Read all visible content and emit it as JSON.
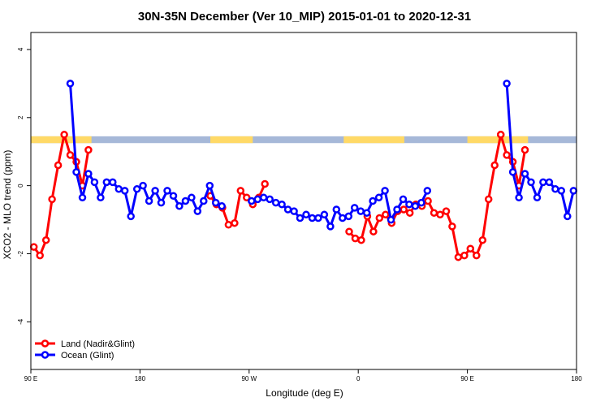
{
  "chart_data": {
    "type": "line",
    "title": "30N-35N December (Ver 10_MIP)   2015-01-01 to 2020-12-31",
    "xlabel": "Longitude (deg E)",
    "ylabel": "XCO2 - MLO trend (ppm)",
    "xlim": [
      90,
      540
    ],
    "ylim": [
      -5.4,
      4.5
    ],
    "x_ticks": [
      {
        "value": 90,
        "label": "90 E"
      },
      {
        "value": 180,
        "label": "180"
      },
      {
        "value": 270,
        "label": "90 W"
      },
      {
        "value": 360,
        "label": "0"
      },
      {
        "value": 450,
        "label": "90 E"
      },
      {
        "value": 540,
        "label": "180"
      }
    ],
    "y_ticks": [
      {
        "value": -4,
        "label": "-4"
      },
      {
        "value": -2,
        "label": "-2"
      },
      {
        "value": 0,
        "label": "0"
      },
      {
        "value": 2,
        "label": "2"
      },
      {
        "value": 4,
        "label": "4"
      }
    ],
    "land_mask_band": {
      "y_range": [
        1.25,
        1.45
      ],
      "land_color": "#FFD966",
      "ocean_color": "#A6B8D8",
      "land_segments": [
        [
          90,
          140
        ],
        [
          238,
          273
        ],
        [
          348,
          398
        ],
        [
          450,
          500
        ]
      ]
    },
    "series": [
      {
        "name": "Land (Nadir&Glint)",
        "color": "#FF0000",
        "segments": [
          {
            "x": [
              92.5,
              97.5,
              102.5,
              107.5,
              112.5,
              117.5,
              122.5,
              127.5,
              132.5,
              137.5
            ],
            "y": [
              -1.8,
              -2.05,
              -1.6,
              -0.4,
              0.6,
              1.5,
              0.9,
              0.7,
              0.0,
              1.05
            ]
          },
          {
            "x": [
              238,
              243,
              248,
              253,
              258,
              263,
              268,
              273,
              278,
              283
            ],
            "y": [
              -0.3,
              -0.55,
              -0.65,
              -1.15,
              -1.1,
              -0.15,
              -0.35,
              -0.55,
              -0.35,
              0.05
            ]
          },
          {
            "x": [
              352.5,
              357.5,
              362.5,
              367.5,
              372.5,
              377.5,
              382.5,
              387.5,
              392.5,
              397.5,
              402.5,
              407.5,
              412.5,
              417.5,
              422.5,
              427.5,
              432.5,
              437.5,
              442.5,
              447.5,
              452.5,
              457.5,
              462.5,
              467.5,
              472.5,
              477.5
            ],
            "y": [
              -1.35,
              -1.55,
              -1.6,
              -0.9,
              -1.35,
              -0.95,
              -0.85,
              -1.1,
              -0.75,
              -0.7,
              -0.8,
              -0.55,
              -0.6,
              -0.45,
              -0.8,
              -0.85,
              -0.75,
              -1.2,
              -2.1,
              -2.05,
              -1.85,
              -2.05,
              -1.6,
              -0.4,
              0.6,
              1.5
            ]
          },
          {
            "x": [
              477.5,
              482.5,
              487.5,
              492.5,
              497.5
            ],
            "y": [
              1.5,
              0.9,
              0.7,
              0.0,
              1.05
            ]
          }
        ]
      },
      {
        "name": "Ocean (Glint)",
        "color": "#0000FF",
        "segments": [
          {
            "x": [
              122.5,
              127.5,
              132.5,
              137.5,
              142.5,
              147.5,
              152.5,
              157.5,
              162.5,
              167.5,
              172.5,
              177.5,
              182.5,
              187.5,
              192.5,
              197.5,
              202.5,
              207.5,
              212.5,
              217.5,
              222.5,
              227.5,
              232.5,
              237.5,
              242.5,
              247.5
            ],
            "y": [
              3.0,
              0.4,
              -0.35,
              0.35,
              0.1,
              -0.35,
              0.1,
              0.1,
              -0.1,
              -0.15,
              -0.9,
              -0.1,
              0.0,
              -0.45,
              -0.15,
              -0.5,
              -0.15,
              -0.3,
              -0.6,
              -0.45,
              -0.35,
              -0.75,
              -0.45,
              0.0,
              -0.5,
              -0.6
            ]
          },
          {
            "x": [
              272,
              277,
              282,
              287,
              292,
              297,
              302,
              307,
              312,
              317,
              322,
              327,
              332,
              337,
              342,
              347
            ],
            "y": [
              -0.45,
              -0.4,
              -0.35,
              -0.4,
              -0.5,
              -0.55,
              -0.7,
              -0.75,
              -0.95,
              -0.85,
              -0.95,
              -0.95,
              -0.85,
              -1.2,
              -0.7,
              -0.95
            ]
          },
          {
            "x": [
              352,
              357,
              362,
              367,
              372,
              377,
              382,
              387,
              392,
              397,
              402,
              407,
              412,
              417
            ],
            "y": [
              -0.9,
              -0.65,
              -0.75,
              -0.8,
              -0.45,
              -0.35,
              -0.15,
              -1.0,
              -0.7,
              -0.4,
              -0.55,
              -0.6,
              -0.5,
              -0.15
            ]
          },
          {
            "x": [
              482.5,
              487.5,
              492.5,
              497.5,
              502.5,
              507.5,
              512.5,
              517.5,
              522.5,
              527.5,
              532.5,
              537.5
            ],
            "y": [
              3.0,
              0.4,
              -0.35,
              0.35,
              0.1,
              -0.35,
              0.1,
              0.1,
              -0.1,
              -0.15,
              -0.9,
              -0.15
            ]
          }
        ]
      }
    ],
    "legend": {
      "position": "bottom-left",
      "entries": [
        "Land (Nadir&Glint)",
        "Ocean (Glint)"
      ]
    }
  }
}
